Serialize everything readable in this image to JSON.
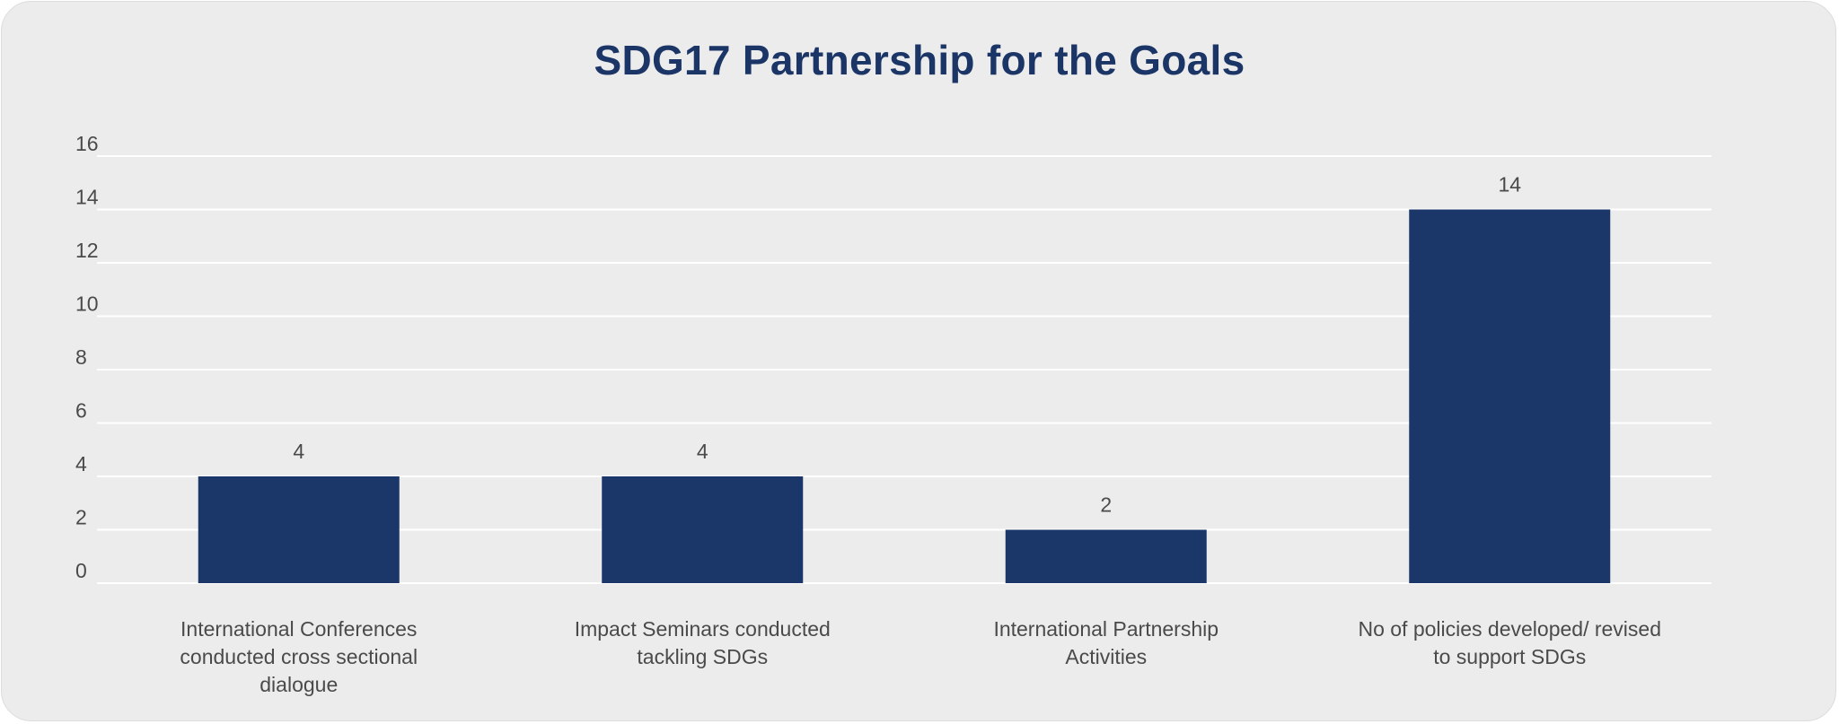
{
  "chart_data": {
    "type": "bar",
    "title": "SDG17 Partnership for the Goals",
    "categories": [
      "International Conferences conducted cross sectional dialogue",
      "Impact Seminars conducted tackling SDGs",
      "International Partnership Activities",
      "No of policies developed/ revised to support SDGs"
    ],
    "values": [
      4,
      4,
      2,
      14
    ],
    "data_labels": [
      "4",
      "4",
      "2",
      "14"
    ],
    "ylim": [
      0,
      16
    ],
    "yticks": [
      0,
      2,
      4,
      6,
      8,
      10,
      12,
      14,
      16
    ],
    "grid": true,
    "legend": false,
    "bar_color": "#1b3668",
    "grid_color": "#ffffff",
    "background_color": "#ececec"
  }
}
